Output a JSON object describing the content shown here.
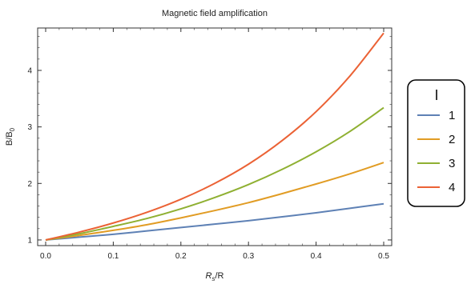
{
  "chart_data": {
    "type": "line",
    "title": "Magnetic field amplification",
    "xlabel": {
      "main": "R",
      "sub": "s",
      "rest": "/R"
    },
    "ylabel": {
      "main": "B/B",
      "sub": "0"
    },
    "xlim": [
      0,
      0.5
    ],
    "ylim": [
      0.9,
      4.75
    ],
    "x_ticks": [
      "0.0",
      "0.1",
      "0.2",
      "0.3",
      "0.4",
      "0.5"
    ],
    "y_ticks": [
      "1",
      "2",
      "3",
      "4"
    ],
    "x": [
      0,
      0.05,
      0.1,
      0.15,
      0.2,
      0.25,
      0.3,
      0.35,
      0.4,
      0.45,
      0.5
    ],
    "legend_title": "I",
    "legend_position": "right",
    "grid": false,
    "series": [
      {
        "name": "1",
        "color": "#5e81b5",
        "values": [
          1,
          1.05,
          1.1,
          1.16,
          1.22,
          1.28,
          1.34,
          1.41,
          1.48,
          1.56,
          1.64
        ]
      },
      {
        "name": "2",
        "color": "#e19c24",
        "values": [
          1,
          1.08,
          1.17,
          1.27,
          1.39,
          1.52,
          1.66,
          1.82,
          1.99,
          2.17,
          2.37
        ]
      },
      {
        "name": "3",
        "color": "#8fb032",
        "values": [
          1,
          1.11,
          1.24,
          1.38,
          1.55,
          1.75,
          1.98,
          2.25,
          2.56,
          2.92,
          3.34
        ]
      },
      {
        "name": "4",
        "color": "#eb6235",
        "values": [
          1,
          1.14,
          1.3,
          1.49,
          1.72,
          2.0,
          2.34,
          2.76,
          3.27,
          3.9,
          4.66
        ]
      }
    ]
  }
}
